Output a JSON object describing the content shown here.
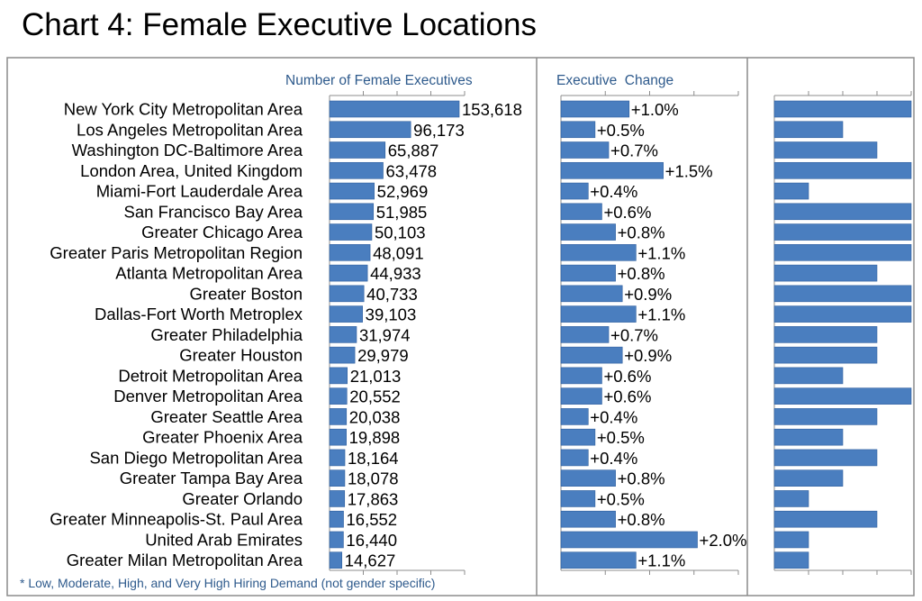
{
  "title": "Chart 4: Female Executive Locations",
  "footnote": "* Low, Moderate, High, and Very High Hiring Demand (not gender specific)",
  "colors": {
    "bar": "#4a7ebf",
    "bar_stroke": "#2f5f9e",
    "header_text": "#2e5a8c",
    "frame": "#8c8c8c"
  },
  "chart_data": [
    {
      "type": "bar",
      "orientation": "horizontal",
      "header": "Number of Female Executives",
      "categories": [
        "New York City Metropolitan Area",
        "Los Angeles Metropolitan Area",
        "Washington DC-Baltimore Area",
        "London Area, United Kingdom",
        "Miami-Fort Lauderdale Area",
        "San Francisco Bay Area",
        "Greater Chicago Area",
        "Greater Paris Metropolitan Region",
        "Atlanta Metropolitan Area",
        "Greater Boston",
        "Dallas-Fort Worth Metroplex",
        "Greater Philadelphia",
        "Greater Houston",
        "Detroit Metropolitan Area",
        "Denver Metropolitan Area",
        "Greater Seattle Area",
        "Greater Phoenix Area",
        "San Diego Metropolitan Area",
        "Greater Tampa Bay Area",
        "Greater Orlando",
        "Greater Minneapolis-St. Paul Area",
        "United Arab Emirates",
        "Greater Milan Metropolitan Area"
      ],
      "values": [
        153618,
        96173,
        65887,
        63478,
        52969,
        51985,
        50103,
        48091,
        44933,
        40733,
        39103,
        31974,
        29979,
        21013,
        20552,
        20038,
        19898,
        18164,
        18078,
        17863,
        16552,
        16440,
        14627
      ],
      "labels": [
        "153,618",
        "96,173",
        "65,887",
        "63,478",
        "52,969",
        "51,985",
        "50,103",
        "48,091",
        "44,933",
        "40,733",
        "39,103",
        "31,974",
        "29,979",
        "21,013",
        "20,552",
        "20,038",
        "19,898",
        "18,164",
        "18,078",
        "17,863",
        "16,552",
        "16,440",
        "14,627"
      ],
      "xlim": [
        0,
        160000
      ],
      "grid": false
    },
    {
      "type": "bar",
      "orientation": "horizontal",
      "header": "Executive  Change",
      "values": [
        1.0,
        0.5,
        0.7,
        1.5,
        0.4,
        0.6,
        0.8,
        1.1,
        0.8,
        0.9,
        1.1,
        0.7,
        0.9,
        0.6,
        0.6,
        0.4,
        0.5,
        0.4,
        0.8,
        0.5,
        0.8,
        2.0,
        1.1
      ],
      "labels": [
        "+1.0%",
        "+0.5%",
        "+0.7%",
        "+1.5%",
        "+0.4%",
        "+0.6%",
        "+0.8%",
        "+1.1%",
        "+0.8%",
        "+0.9%",
        "+1.1%",
        "+0.7%",
        "+0.9%",
        "+0.6%",
        "+0.6%",
        "+0.4%",
        "+0.5%",
        "+0.4%",
        "+0.8%",
        "+0.5%",
        "+0.8%",
        "+2.0%",
        "+1.1%"
      ],
      "xlim": [
        0,
        2.6
      ],
      "grid": false
    },
    {
      "type": "bar",
      "orientation": "horizontal",
      "scale": [
        "Low",
        "Moderate",
        "High",
        "Very High"
      ],
      "values": [
        4,
        2,
        3,
        4,
        1,
        4,
        4,
        4,
        3,
        4,
        4,
        3,
        3,
        2,
        4,
        3,
        2,
        3,
        2,
        1,
        3,
        1,
        1
      ],
      "xlim": [
        0,
        4
      ],
      "grid": false
    }
  ]
}
